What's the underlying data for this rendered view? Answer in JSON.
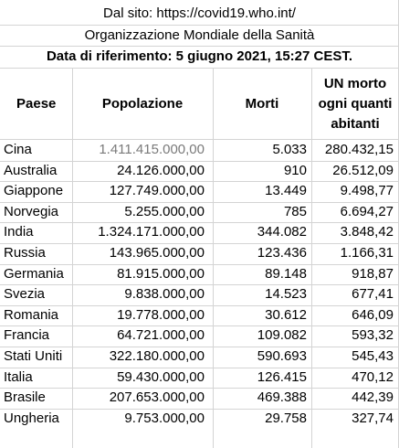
{
  "source": "Dal sito: https://covid19.who.int/",
  "organization": "Organizzazione Mondiale della Sanità",
  "reference_date": "Data di riferimento: 5 giugno 2021, 15:27 CEST.",
  "headers": {
    "country": "Paese",
    "population": "Popolazione",
    "deaths": "Morti",
    "ratio_line1": "UN morto",
    "ratio_line2": "ogni quanti",
    "ratio_line3": "abitanti"
  },
  "rows": [
    {
      "country": "Cina",
      "population": "1.411.415.000,00",
      "deaths": "5.033",
      "ratio": "280.432,15"
    },
    {
      "country": "Australia",
      "population": "24.126.000,00",
      "deaths": "910",
      "ratio": "26.512,09"
    },
    {
      "country": "Giappone",
      "population": "127.749.000,00",
      "deaths": "13.449",
      "ratio": "9.498,77"
    },
    {
      "country": "Norvegia",
      "population": "5.255.000,00",
      "deaths": "785",
      "ratio": "6.694,27"
    },
    {
      "country": "India",
      "population": "1.324.171.000,00",
      "deaths": "344.082",
      "ratio": "3.848,42"
    },
    {
      "country": "Russia",
      "population": "143.965.000,00",
      "deaths": "123.436",
      "ratio": "1.166,31"
    },
    {
      "country": "Germania",
      "population": "81.915.000,00",
      "deaths": "89.148",
      "ratio": "918,87"
    },
    {
      "country": "Svezia",
      "population": "9.838.000,00",
      "deaths": "14.523",
      "ratio": "677,41"
    },
    {
      "country": "Romania",
      "population": "19.778.000,00",
      "deaths": "30.612",
      "ratio": "646,09"
    },
    {
      "country": "Francia",
      "population": "64.721.000,00",
      "deaths": "109.082",
      "ratio": "593,32"
    },
    {
      "country": "Stati Uniti",
      "population": "322.180.000,00",
      "deaths": "590.693",
      "ratio": "545,43"
    },
    {
      "country": "Italia",
      "population": "59.430.000,00",
      "deaths": "126.415",
      "ratio": "470,12"
    },
    {
      "country": "Brasile",
      "population": "207.653.000,00",
      "deaths": "469.388",
      "ratio": "442,39"
    },
    {
      "country": "Ungheria",
      "population": "9.753.000,00",
      "deaths": "29.758",
      "ratio": "327,74"
    }
  ]
}
